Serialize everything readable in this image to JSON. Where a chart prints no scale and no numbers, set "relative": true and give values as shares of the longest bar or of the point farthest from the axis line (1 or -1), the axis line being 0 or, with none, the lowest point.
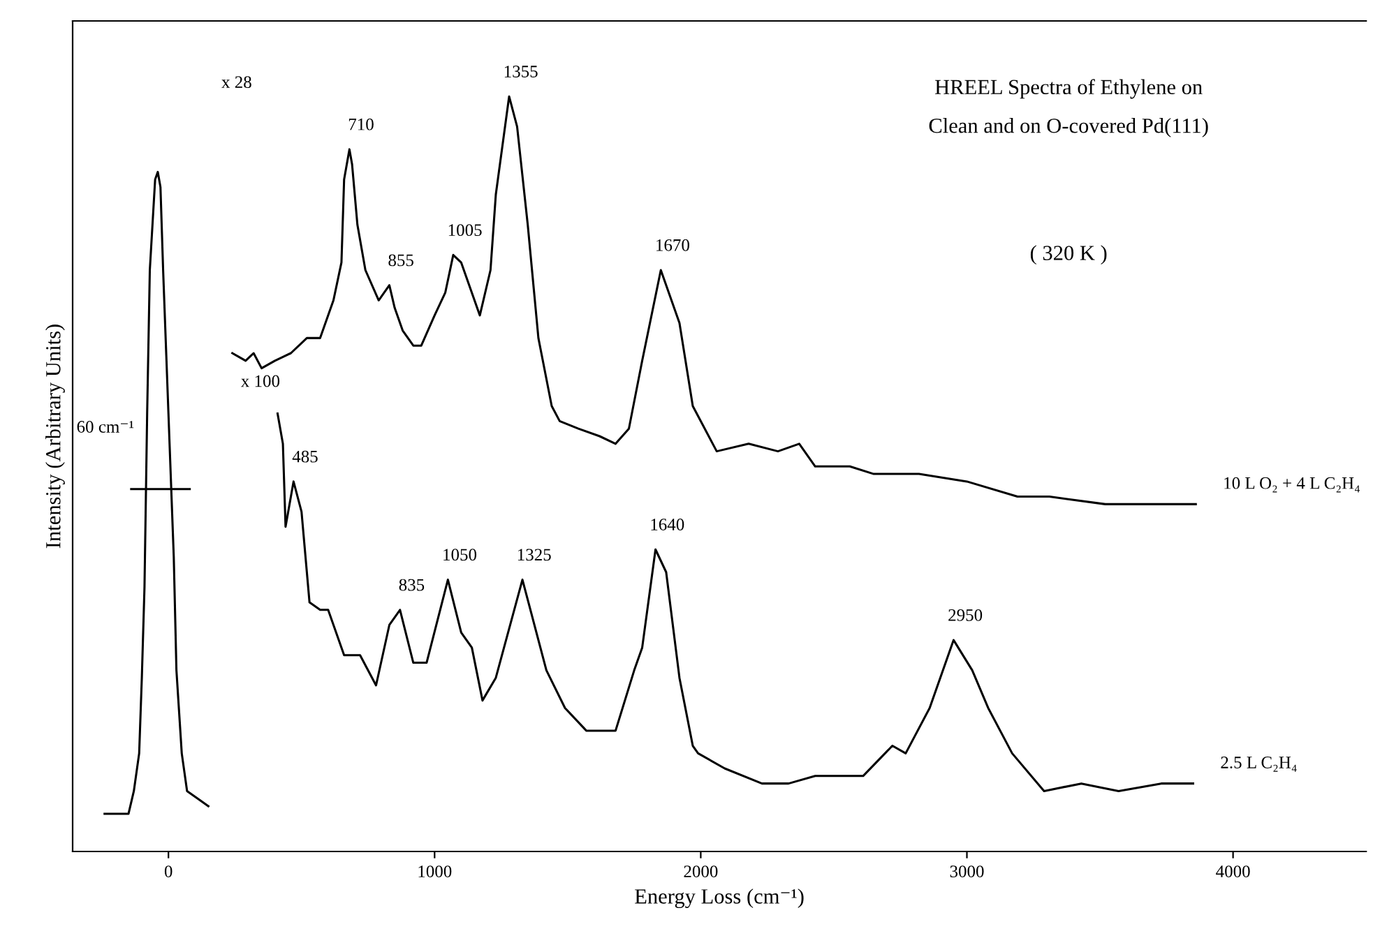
{
  "chart_data": {
    "type": "line",
    "relative": true,
    "title": "HREEL Spectra of Ethylene on\nClean and on O-covered Pd(111)",
    "subtitle": "( 320 K )",
    "xlabel": "Energy Loss (cm⁻¹)",
    "ylabel": "Intensity (Arbitrary Units)",
    "xlim": [
      -360,
      4500
    ],
    "xticks": [
      0,
      1000,
      2000,
      3000,
      4000
    ],
    "grid": false,
    "legend": false,
    "marker": "none",
    "line_style": "solid",
    "series": [
      {
        "type": "line",
        "color": "#000000",
        "x": [
          -140,
          80
        ],
        "values": [
          0.48,
          0.48
        ]
      },
      {
        "color": "#000000",
        "x": [
          -240,
          -190,
          -150,
          -130,
          -110,
          -100,
          -90,
          -80,
          -70,
          -50,
          -40,
          -30,
          -20,
          0,
          20,
          30,
          50,
          70,
          110,
          150
        ],
        "values": [
          0.05,
          0.05,
          0.05,
          0.08,
          0.13,
          0.23,
          0.35,
          0.58,
          0.77,
          0.89,
          0.9,
          0.88,
          0.77,
          0.58,
          0.39,
          0.24,
          0.13,
          0.08,
          0.07,
          0.06
        ]
      },
      {
        "name": "10 L O₂ + 4 L C₂H₄",
        "color": "#000000",
        "x": [
          240,
          290,
          320,
          350,
          400,
          460,
          520,
          570,
          620,
          650,
          660,
          680,
          690,
          710,
          740,
          790,
          830,
          850,
          880,
          920,
          950,
          1000,
          1040,
          1070,
          1100,
          1140,
          1170,
          1210,
          1230,
          1280,
          1310,
          1350,
          1390,
          1440,
          1470,
          1540,
          1620,
          1680,
          1730,
          1780,
          1850,
          1920,
          1970,
          2060,
          2180,
          2290,
          2370,
          2430,
          2560,
          2650,
          2820,
          3000,
          3190,
          3310,
          3520,
          3690,
          3860
        ],
        "values": [
          0.66,
          0.65,
          0.66,
          0.64,
          0.65,
          0.66,
          0.68,
          0.68,
          0.73,
          0.78,
          0.89,
          0.93,
          0.91,
          0.83,
          0.77,
          0.73,
          0.75,
          0.72,
          0.69,
          0.67,
          0.67,
          0.71,
          0.74,
          0.79,
          0.78,
          0.74,
          0.71,
          0.77,
          0.87,
          1.0,
          0.96,
          0.83,
          0.68,
          0.59,
          0.57,
          0.56,
          0.55,
          0.54,
          0.56,
          0.65,
          0.77,
          0.7,
          0.59,
          0.53,
          0.54,
          0.53,
          0.54,
          0.51,
          0.51,
          0.5,
          0.5,
          0.49,
          0.47,
          0.47,
          0.46,
          0.46,
          0.46
        ]
      },
      {
        "name": "2.5 L C₂H₄",
        "color": "#000000",
        "x": [
          410,
          430,
          440,
          470,
          500,
          530,
          570,
          600,
          660,
          720,
          780,
          830,
          870,
          920,
          970,
          1050,
          1100,
          1140,
          1180,
          1230,
          1330,
          1420,
          1490,
          1570,
          1680,
          1750,
          1780,
          1830,
          1870,
          1920,
          1970,
          1990,
          2090,
          2230,
          2330,
          2430,
          2610,
          2720,
          2770,
          2860,
          2950,
          3020,
          3080,
          3170,
          3290,
          3430,
          3570,
          3730,
          3850
        ],
        "values": [
          0.58,
          0.54,
          0.43,
          0.49,
          0.45,
          0.33,
          0.32,
          0.32,
          0.26,
          0.26,
          0.22,
          0.3,
          0.32,
          0.25,
          0.25,
          0.36,
          0.29,
          0.27,
          0.2,
          0.23,
          0.36,
          0.24,
          0.19,
          0.16,
          0.16,
          0.24,
          0.27,
          0.4,
          0.37,
          0.23,
          0.14,
          0.13,
          0.11,
          0.09,
          0.09,
          0.1,
          0.1,
          0.14,
          0.13,
          0.19,
          0.28,
          0.24,
          0.19,
          0.13,
          0.08,
          0.09,
          0.08,
          0.09,
          0.09
        ]
      }
    ],
    "annotations": [
      "x 28",
      {
        "text": "710",
        "x": 680,
        "y": 0.93
      },
      {
        "text": "855",
        "x": 830,
        "y": 0.75
      },
      {
        "text": "1005",
        "x": 1070,
        "y": 0.79
      },
      {
        "text": "1355",
        "x": 1280,
        "y": 1.0
      },
      {
        "text": "1670",
        "x": 1850,
        "y": 0.77
      },
      "x 100",
      {
        "text": "485",
        "x": 470,
        "y": 0.49
      },
      {
        "text": "835",
        "x": 870,
        "y": 0.32
      },
      {
        "text": "1050",
        "x": 1050,
        "y": 0.36
      },
      {
        "text": "1325",
        "x": 1330,
        "y": 0.36
      },
      {
        "text": "1640",
        "x": 1830,
        "y": 0.4
      },
      {
        "text": "2950",
        "x": 2950,
        "y": 0.28
      },
      "60 cm⁻¹"
    ]
  }
}
